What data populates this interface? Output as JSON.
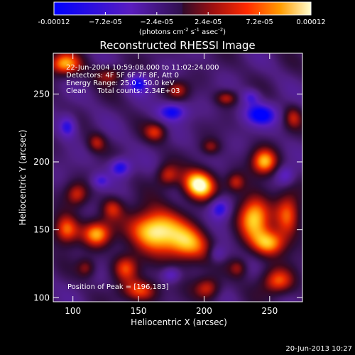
{
  "chart_data": {
    "type": "heatmap",
    "title": "Reconstructed RHESSI Image",
    "xlabel": "Heliocentric X (arcsec)",
    "ylabel": "Heliocentric Y (arcsec)",
    "xlim": [
      85,
      275
    ],
    "ylim": [
      97,
      280
    ],
    "xticks": [
      100,
      150,
      200,
      250
    ],
    "yticks": [
      100,
      150,
      200,
      250
    ],
    "colorbar": {
      "min": -0.00012,
      "max": 0.00012,
      "ticks": [
        {
          "value": -0.00012,
          "label": "-0.00012"
        },
        {
          "value": -7.2e-05,
          "label": "−7.2e-05"
        },
        {
          "value": -2.4e-05,
          "label": "−2.4e-05"
        },
        {
          "value": 2.4e-05,
          "label": "2.4e-05"
        },
        {
          "value": 7.2e-05,
          "label": "7.2e-05"
        },
        {
          "value": 0.00012,
          "label": "0.00012"
        }
      ],
      "units_prefix": "(photons cm",
      "units_exp1": "-2",
      "units_mid1": " s",
      "units_exp2": "-1",
      "units_mid2": " asec",
      "units_exp3": "-2",
      "units_suffix": ")"
    },
    "info_lines": [
      "22-Jun-2004 10:59:08.000 to 11:02:24.000",
      "Detectors: 4F 5F 6F 7F 8F, Att 0",
      "Energy Range: 25.0 - 50.0 keV",
      "Clean     Total counts: 2.34E+03"
    ],
    "peak_label": "Position of Peak = [196,183]",
    "peak": {
      "x": 196,
      "y": 183
    },
    "blobs": [
      {
        "x": 162,
        "y": 150,
        "sx": 14,
        "sy": 11,
        "a": 1.3
      },
      {
        "x": 188,
        "y": 138,
        "sx": 12,
        "sy": 10,
        "a": 0.95
      },
      {
        "x": 196,
        "y": 183,
        "sx": 9,
        "sy": 8,
        "a": 1.35
      },
      {
        "x": 140,
        "y": 122,
        "sx": 7,
        "sy": 7,
        "a": 0.75
      },
      {
        "x": 152,
        "y": 105,
        "sx": 10,
        "sy": 6,
        "a": 0.8
      },
      {
        "x": 118,
        "y": 147,
        "sx": 8,
        "sy": 7,
        "a": 0.95
      },
      {
        "x": 95,
        "y": 150,
        "sx": 7,
        "sy": 8,
        "a": 0.95
      },
      {
        "x": 103,
        "y": 176,
        "sx": 6,
        "sy": 6,
        "a": 0.6
      },
      {
        "x": 130,
        "y": 166,
        "sx": 6,
        "sy": 6,
        "a": 0.6
      },
      {
        "x": 172,
        "y": 190,
        "sx": 6,
        "sy": 6,
        "a": 0.65
      },
      {
        "x": 203,
        "y": 107,
        "sx": 7,
        "sy": 6,
        "a": 0.7
      },
      {
        "x": 238,
        "y": 160,
        "sx": 9,
        "sy": 12,
        "a": 1.1
      },
      {
        "x": 264,
        "y": 160,
        "sx": 7,
        "sy": 12,
        "a": 0.8
      },
      {
        "x": 250,
        "y": 140,
        "sx": 9,
        "sy": 7,
        "a": 0.95
      },
      {
        "x": 256,
        "y": 112,
        "sx": 9,
        "sy": 7,
        "a": 0.8
      },
      {
        "x": 246,
        "y": 200,
        "sx": 7,
        "sy": 7,
        "a": 1.0
      },
      {
        "x": 224,
        "y": 185,
        "sx": 5,
        "sy": 5,
        "a": 0.55
      },
      {
        "x": 226,
        "y": 122,
        "sx": 5,
        "sy": 5,
        "a": 0.5
      },
      {
        "x": 93,
        "y": 272,
        "sx": 9,
        "sy": 6,
        "a": 0.95
      },
      {
        "x": 128,
        "y": 264,
        "sx": 8,
        "sy": 5,
        "a": 0.55
      },
      {
        "x": 180,
        "y": 253,
        "sx": 6,
        "sy": 5,
        "a": 0.55
      },
      {
        "x": 217,
        "y": 247,
        "sx": 6,
        "sy": 4,
        "a": 0.6
      },
      {
        "x": 163,
        "y": 222,
        "sx": 6,
        "sy": 5,
        "a": 0.6
      },
      {
        "x": 118,
        "y": 214,
        "sx": 5,
        "sy": 5,
        "a": 0.55
      },
      {
        "x": 205,
        "y": 211,
        "sx": 5,
        "sy": 4,
        "a": 0.45
      },
      {
        "x": 268,
        "y": 233,
        "sx": 5,
        "sy": 6,
        "a": 0.5
      },
      {
        "x": 110,
        "y": 122,
        "sx": 5,
        "sy": 5,
        "a": 0.5
      },
      {
        "x": 150,
        "y": 258,
        "sx": 6,
        "sy": 5,
        "a": -0.7
      },
      {
        "x": 176,
        "y": 237,
        "sx": 8,
        "sy": 5,
        "a": -0.8
      },
      {
        "x": 243,
        "y": 235,
        "sx": 10,
        "sy": 6,
        "a": -0.8
      },
      {
        "x": 96,
        "y": 226,
        "sx": 5,
        "sy": 6,
        "a": -0.7
      },
      {
        "x": 136,
        "y": 196,
        "sx": 6,
        "sy": 5,
        "a": -0.8
      },
      {
        "x": 121,
        "y": 186,
        "sx": 5,
        "sy": 4,
        "a": -0.5
      },
      {
        "x": 212,
        "y": 166,
        "sx": 6,
        "sy": 6,
        "a": -0.8
      },
      {
        "x": 236,
        "y": 248,
        "sx": 5,
        "sy": 4,
        "a": -0.5
      },
      {
        "x": 175,
        "y": 117,
        "sx": 5,
        "sy": 4,
        "a": -0.5
      },
      {
        "x": 210,
        "y": 132,
        "sx": 5,
        "sy": 5,
        "a": -0.5
      },
      {
        "x": 262,
        "y": 190,
        "sx": 5,
        "sy": 5,
        "a": -0.5
      }
    ],
    "grid": false
  },
  "footer": {
    "date": "20-Jun-2013 10:27"
  }
}
